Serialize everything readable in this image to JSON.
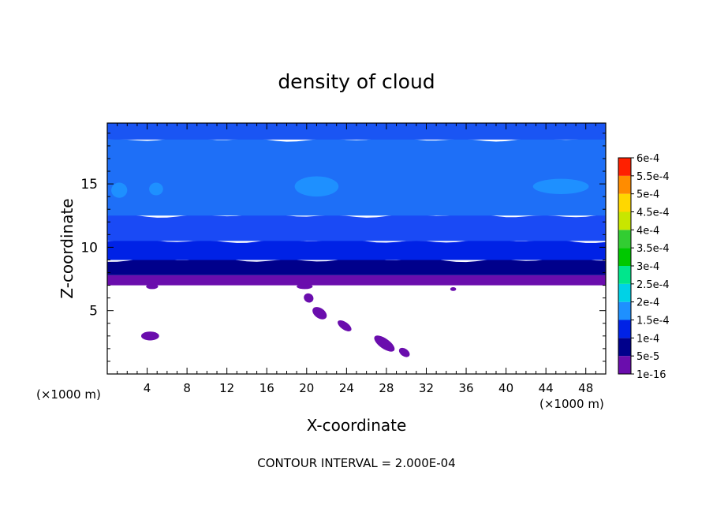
{
  "chart_data": {
    "type": "heatmap",
    "title": "density of cloud",
    "xlabel": "X-coordinate",
    "ylabel": "Z-coordinate",
    "x_unit": "(×1000 m)",
    "y_unit": "(×1000 m)",
    "xlim": [
      0,
      50
    ],
    "ylim": [
      0,
      19.8
    ],
    "x_ticks": [
      "4",
      "8",
      "12",
      "16",
      "20",
      "24",
      "28",
      "32",
      "36",
      "40",
      "44",
      "48"
    ],
    "y_ticks": [
      "5",
      "10",
      "15"
    ],
    "footer": "CONTOUR INTERVAL = 2.000E-04",
    "colorbar": {
      "labels": [
        "1e-16",
        "5e-5",
        "1e-4",
        "1.5e-4",
        "2e-4",
        "2.5e-4",
        "3e-4",
        "3.5e-4",
        "4e-4",
        "4.5e-4",
        "5e-4",
        "5.5e-4",
        "6e-4"
      ],
      "colors": [
        "#6a0dad",
        "#00008b",
        "#0022e6",
        "#1e90ff",
        "#00d2e6",
        "#00e68c",
        "#00c800",
        "#32cd32",
        "#c8e600",
        "#ffd700",
        "#ff8c00",
        "#ff2000",
        "#ff7070"
      ]
    },
    "cloud_base_z": 7.0,
    "layers": [
      {
        "z0": 7.0,
        "z1": 7.8,
        "color": "#6a0dad"
      },
      {
        "z0": 7.8,
        "z1": 9.0,
        "color": "#00008b"
      },
      {
        "z0": 9.0,
        "z1": 10.5,
        "color": "#0022e6"
      },
      {
        "z0": 10.5,
        "z1": 12.5,
        "color": "#1a4af5"
      },
      {
        "z0": 12.5,
        "z1": 18.5,
        "color": "#1e6ff7"
      },
      {
        "z0": 18.5,
        "z1": 19.8,
        "color": "#1a55f3"
      }
    ],
    "patches_1_5e_4": [
      {
        "x": 1.2,
        "z": 14.5,
        "rx": 0.8,
        "rz": 0.6
      },
      {
        "x": 4.9,
        "z": 14.6,
        "rx": 0.7,
        "rz": 0.5
      },
      {
        "x": 21.0,
        "z": 14.8,
        "rx": 2.2,
        "rz": 0.8
      },
      {
        "x": 45.5,
        "z": 14.8,
        "rx": 2.8,
        "rz": 0.6
      }
    ],
    "patches_1e_16": [
      {
        "x": 4.3,
        "z": 3.0,
        "rx": 0.9,
        "rz": 0.35
      },
      {
        "x": 20.2,
        "z": 6.0,
        "rx": 0.5,
        "rz": 0.35
      },
      {
        "x": 21.3,
        "z": 4.8,
        "rx": 0.8,
        "rz": 0.4
      },
      {
        "x": 23.8,
        "z": 3.8,
        "rx": 0.8,
        "rz": 0.3
      },
      {
        "x": 27.8,
        "z": 2.4,
        "rx": 1.2,
        "rz": 0.4
      },
      {
        "x": 29.8,
        "z": 1.7,
        "rx": 0.6,
        "rz": 0.3
      },
      {
        "x": 34.7,
        "z": 6.7,
        "rx": 0.3,
        "rz": 0.15
      },
      {
        "x": 4.5,
        "z": 6.9,
        "rx": 0.6,
        "rz": 0.2
      },
      {
        "x": 19.8,
        "z": 6.9,
        "rx": 0.8,
        "rz": 0.2
      }
    ]
  }
}
